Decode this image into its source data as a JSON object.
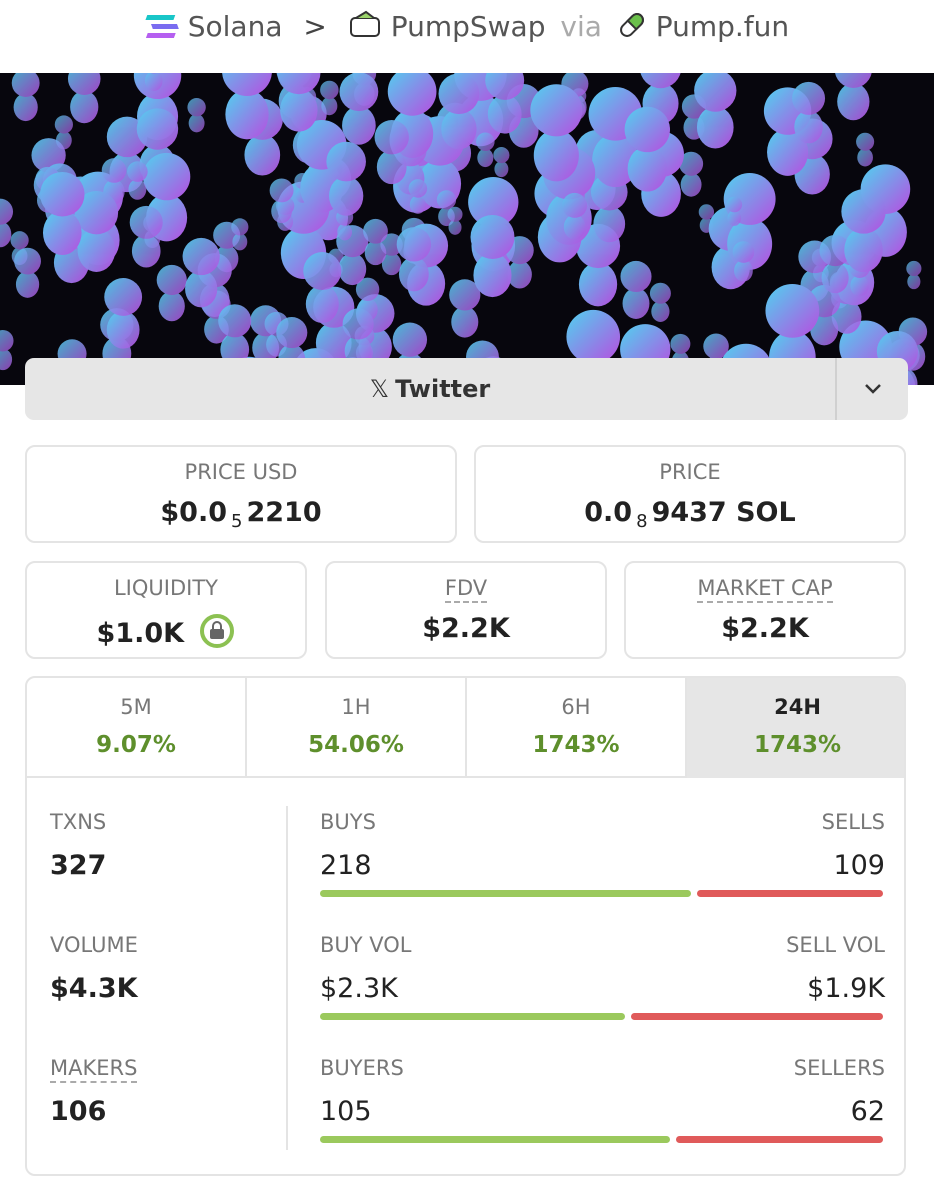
{
  "breadcrumb": {
    "chain": "Solana",
    "separator": ">",
    "dex": "PumpSwap",
    "via": "via",
    "launchpad": "Pump.fun"
  },
  "social": {
    "twitter": "Twitter"
  },
  "prices": [
    {
      "label": "PRICE USD",
      "value": "$0.0",
      "subscript": "5",
      "digits": "2210"
    },
    {
      "label": "PRICE",
      "value": "0.0",
      "subscript": "8",
      "digits": "9437 SOL"
    }
  ],
  "metrics": [
    {
      "label": "LIQUIDITY",
      "value": "$1.0K"
    },
    {
      "label": "FDV",
      "value": "$2.2K"
    },
    {
      "label": "MARKET CAP",
      "value": "$2.2K"
    }
  ],
  "timeframes": [
    {
      "label": "5M",
      "change": "9.07%"
    },
    {
      "label": "1H",
      "change": "54.06%"
    },
    {
      "label": "6H",
      "change": "1743%"
    },
    {
      "label": "24H",
      "change": "1743%"
    }
  ],
  "selected_timeframe": 3,
  "stats": [
    {
      "label": "TXNS",
      "value": 327,
      "left_label": "BUYS",
      "left": 218,
      "right_label": "SELLS",
      "right": 109
    },
    {
      "label": "VOLUME",
      "value": "$4.3K",
      "left_label": "BUY VOL",
      "left": {
        "value": 2300,
        "label": "$2.3K"
      },
      "right_label": "SELL VOL",
      "right": {
        "value": 1900,
        "label": "$1.9K"
      }
    },
    {
      "label": "MAKERS",
      "value": 106,
      "left_label": "BUYERS",
      "left": 105,
      "right_label": "SELLERS",
      "right": 62
    }
  ]
}
